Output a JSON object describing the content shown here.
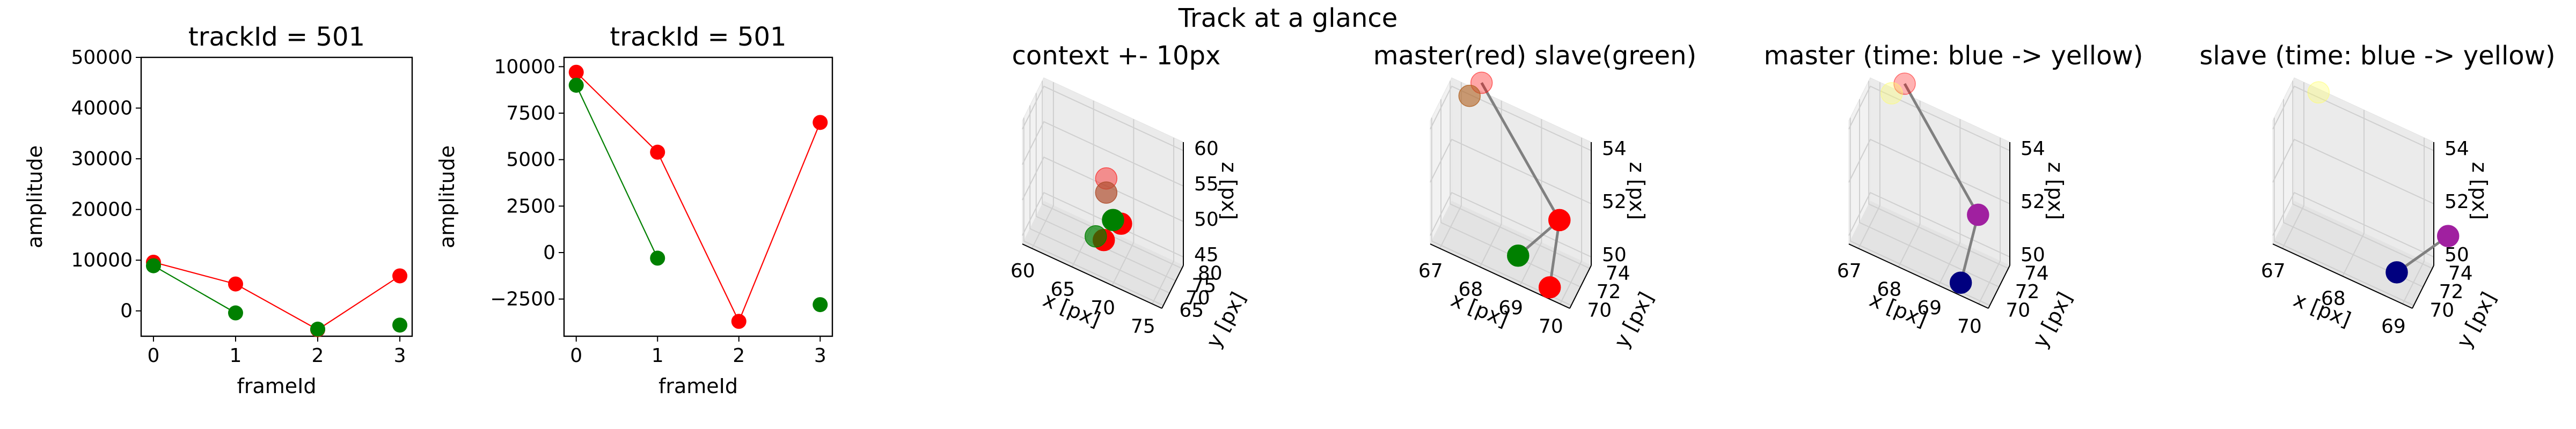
{
  "figure": {
    "suptitle": "Track at a glance"
  },
  "colors": {
    "master": "#ff0000",
    "slave": "#008000",
    "link": "#808080",
    "time_start": "#00007f",
    "time_end": "#ffff66"
  },
  "chart_data": [
    {
      "type": "line",
      "title": "trackId = 501",
      "xlabel": "frameId",
      "ylabel": "amplitude",
      "xlim": [
        -0.15,
        3.15
      ],
      "ylim": [
        -5000,
        50000
      ],
      "xticks": [
        0,
        1,
        2,
        3
      ],
      "yticks": [
        0,
        10000,
        20000,
        30000,
        40000,
        50000
      ],
      "series": [
        {
          "color": "#ff0000",
          "x": [
            0,
            1,
            2,
            3
          ],
          "y": [
            9600,
            5300,
            -3700,
            6900
          ]
        },
        {
          "color": "#008000",
          "x": [
            0,
            1
          ],
          "y": [
            8900,
            -400
          ]
        },
        {
          "color": "#008000",
          "markers_only": true,
          "x": [
            2,
            3
          ],
          "y": [
            -3600,
            -2800
          ]
        }
      ]
    },
    {
      "type": "line",
      "title": "trackId = 501",
      "xlabel": "frameId",
      "ylabel": "amplitude",
      "xlim": [
        -0.15,
        3.15
      ],
      "ylim": [
        -4500,
        10500
      ],
      "xticks": [
        0,
        1,
        2,
        3
      ],
      "yticks": [
        -2500,
        0,
        2500,
        5000,
        7500,
        10000
      ],
      "series": [
        {
          "color": "#ff0000",
          "x": [
            0,
            1,
            2,
            3
          ],
          "y": [
            9700,
            5400,
            -3700,
            7000
          ]
        },
        {
          "color": "#008000",
          "x": [
            0,
            1
          ],
          "y": [
            9000,
            -300
          ]
        },
        {
          "color": "#008000",
          "markers_only": true,
          "x": [
            3
          ],
          "y": [
            -2800
          ]
        }
      ]
    },
    {
      "type": "scatter3d",
      "title": "context +- 10px",
      "xlabel": "x [px]",
      "ylabel": "y [px]",
      "zlabel": "z [px]",
      "xticks": [
        60,
        65,
        70,
        75
      ],
      "yticks": [
        65,
        70,
        75,
        80
      ],
      "zticks": [
        45,
        50,
        55,
        60
      ],
      "points": [
        {
          "x": 68,
          "y": 72,
          "z": 55,
          "color": "#ff0000",
          "alpha": 0.4
        },
        {
          "x": 68,
          "y": 72,
          "z": 53,
          "color": "#b05030",
          "alpha": 0.7
        },
        {
          "x": 70,
          "y": 71,
          "z": 50,
          "color": "#ff0000",
          "alpha": 1.0
        },
        {
          "x": 69,
          "y": 71,
          "z": 50,
          "color": "#008000",
          "alpha": 1.0
        },
        {
          "x": 68,
          "y": 70,
          "z": 47,
          "color": "#ff0000",
          "alpha": 1.0
        },
        {
          "x": 67,
          "y": 70,
          "z": 47,
          "color": "#008000",
          "alpha": 0.7
        }
      ]
    },
    {
      "type": "scatter3d",
      "title": "master(red) slave(green)",
      "xlabel": "x [px]",
      "ylabel": "y [px]",
      "zlabel": "z [px]",
      "xticks": [
        67,
        68,
        69,
        70
      ],
      "yticks": [
        70,
        72,
        74
      ],
      "zticks": [
        50,
        52,
        54
      ],
      "points": [
        {
          "x": 67.6,
          "y": 73.5,
          "z": 55.0,
          "color": "#ff0000",
          "alpha": 0.35
        },
        {
          "x": 67.3,
          "y": 73.5,
          "z": 54.3,
          "color": "#b06020",
          "alpha": 0.6
        },
        {
          "x": 69.6,
          "y": 73.0,
          "z": 51.4,
          "color": "#ff0000",
          "alpha": 1.0
        },
        {
          "x": 68.8,
          "y": 71.0,
          "z": 50.2,
          "color": "#008000",
          "alpha": 1.0
        },
        {
          "x": 69.6,
          "y": 70.9,
          "z": 49.6,
          "color": "#ff0000",
          "alpha": 1.0
        }
      ],
      "links": [
        [
          0,
          2
        ],
        [
          2,
          3
        ],
        [
          2,
          4
        ]
      ]
    },
    {
      "type": "scatter3d",
      "title": "master (time: blue -> yellow)",
      "xlabel": "x [px]",
      "ylabel": "y [px]",
      "zlabel": "z [px]",
      "xticks": [
        67,
        68,
        69,
        70
      ],
      "yticks": [
        70,
        72,
        74
      ],
      "zticks": [
        50,
        52,
        54
      ],
      "points": [
        {
          "x": 67.7,
          "y": 73.6,
          "z": 55.0,
          "color": "#ff0000",
          "alpha": 0.3
        },
        {
          "x": 67.4,
          "y": 73.4,
          "z": 54.5,
          "color": "#ffff66",
          "alpha": 0.35
        },
        {
          "x": 69.6,
          "y": 73.0,
          "z": 51.6,
          "color": "#a020a0",
          "alpha": 1.0
        },
        {
          "x": 69.4,
          "y": 71.0,
          "z": 49.6,
          "color": "#00007f",
          "alpha": 1.0
        }
      ],
      "links": [
        [
          0,
          2
        ],
        [
          2,
          3
        ]
      ]
    },
    {
      "type": "scatter3d",
      "title": "slave (time: blue -> yellow)",
      "xlabel": "x [px]",
      "ylabel": "y [px]",
      "zlabel": "z [px]",
      "xticks": [
        67,
        68,
        69
      ],
      "yticks": [
        70,
        72,
        74
      ],
      "zticks": [
        50,
        52,
        54
      ],
      "points": [
        {
          "x": 67.3,
          "y": 73.6,
          "z": 54.5,
          "color": "#ffff66",
          "alpha": 0.35
        },
        {
          "x": 69.5,
          "y": 73.0,
          "z": 51.6,
          "color": "#a020a0",
          "alpha": 1.0
        },
        {
          "x": 68.8,
          "y": 71.0,
          "z": 50.2,
          "color": "#00007f",
          "alpha": 1.0
        }
      ],
      "links": [
        [
          1,
          2
        ]
      ]
    }
  ]
}
